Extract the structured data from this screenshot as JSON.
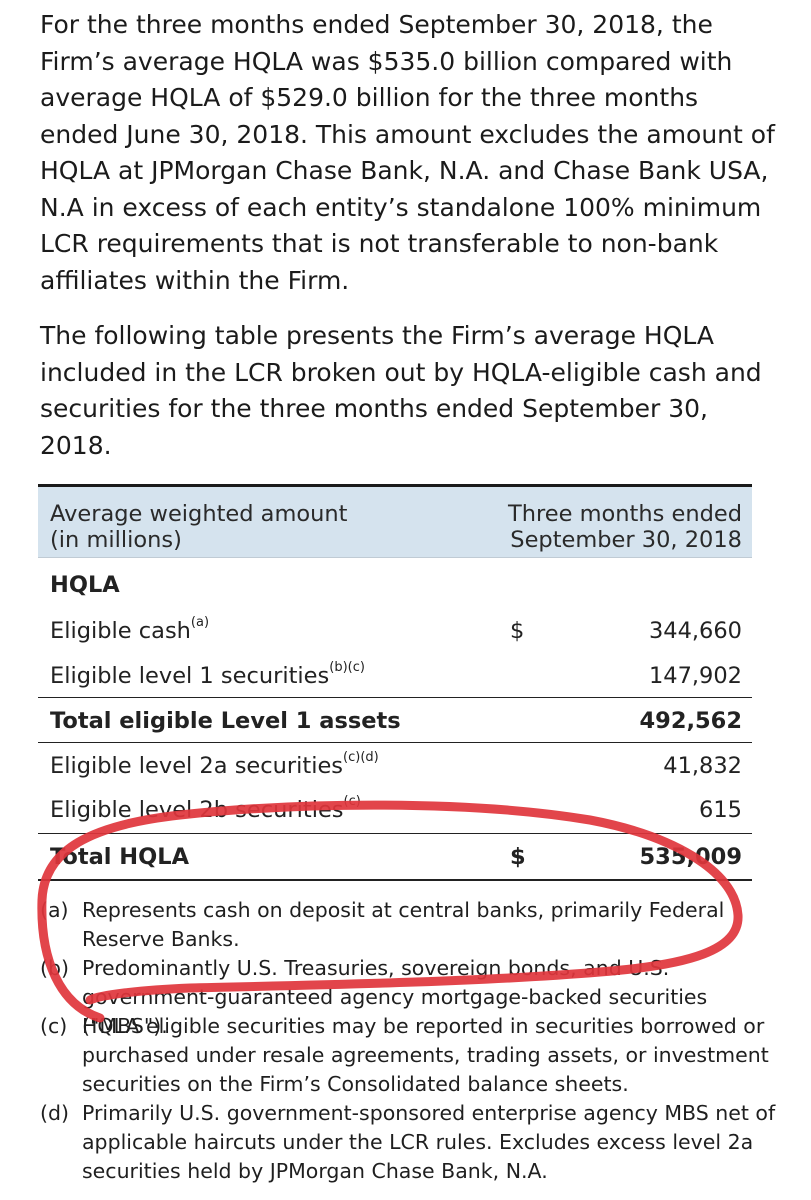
{
  "paragraphs": {
    "p1": "For the three months ended September 30, 2018, the Firm’s average HQLA was $535.0 billion compared with average HQLA of $529.0 billion for the three months ended June 30, 2018. This amount excludes the amount of HQLA at JPMorgan Chase Bank, N.A. and Chase Bank USA, N.A in excess of each entity’s standalone 100% minimum LCR requirements that is not transferable to non-bank affiliates within the Firm.",
    "p2": "The following table presents the Firm’s average HQLA included in the LCR broken out by HQLA-eligible cash and securities for the three months ended September 30, 2018."
  },
  "table": {
    "header_left": "Average weighted amount\n(in millions)",
    "header_right": "Three months ended\nSeptember 30, 2018",
    "section_label": "HQLA",
    "rows": [
      {
        "label": "Eligible cash",
        "sup": "(a)",
        "dollar": "$",
        "value": "344,660"
      },
      {
        "label": "Eligible level 1 securities",
        "sup": "(b)(c)",
        "dollar": "",
        "value": "147,902"
      },
      {
        "label": "Total eligible Level 1 assets",
        "sup": "",
        "dollar": "",
        "value": "492,562"
      },
      {
        "label": "Eligible level 2a securities",
        "sup": "(c)(d)",
        "dollar": "",
        "value": "41,832"
      },
      {
        "label": "Eligible level 2b securities",
        "sup": "(c)",
        "dollar": "",
        "value": "615"
      },
      {
        "label": "Total HQLA",
        "sup": "",
        "dollar": "$",
        "value": "535,009"
      }
    ]
  },
  "footnotes": [
    {
      "mark": "(a)",
      "text": "Represents cash on deposit at central banks, primarily Federal Reserve Banks."
    },
    {
      "mark": "(b)",
      "text": "Predominantly U.S. Treasuries, sovereign bonds, and U.S. government-guaranteed agency mortgage-backed securities (\"MBS\")."
    },
    {
      "mark": "(c)",
      "text": "HQLA eligible securities may be reported in securities borrowed or purchased under resale agreements, trading assets, or investment securities on the Firm’s Consolidated balance sheets."
    },
    {
      "mark": "(d)",
      "text": "Primarily U.S. government-sponsored enterprise agency MBS net of applicable haircuts under the LCR rules. Excludes excess level 2a securities held by JPMorgan Chase Bank, N.A."
    }
  ],
  "colors": {
    "header_background": "#d5e3ee",
    "annotation_stroke": "#e0353c"
  }
}
